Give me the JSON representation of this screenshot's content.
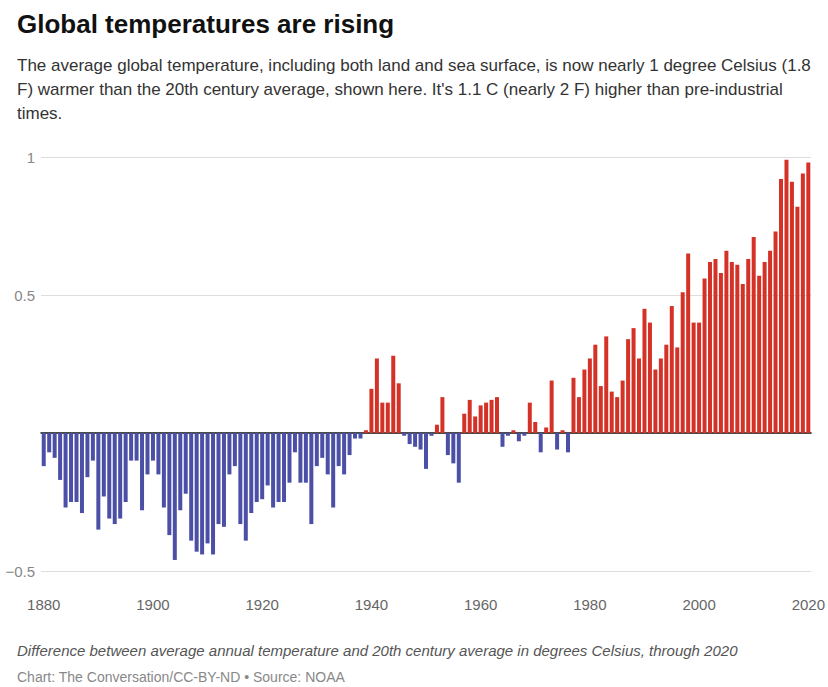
{
  "chart_data": {
    "type": "bar",
    "title": "Global temperatures are rising",
    "subtitle": "The average global temperature, including both land and sea surface, is now nearly 1 degree Celsius (1.8 F) warmer than the 20th century average, shown here. It's 1.1 C (nearly 2 F) higher than pre-industrial times.",
    "caption": "Difference between average annual temperature and 20th century average in degrees Celsius, through 2020",
    "source": "Chart: The Conversation/CC-BY-ND • Source: NOAA",
    "x": [
      1880,
      1881,
      1882,
      1883,
      1884,
      1885,
      1886,
      1887,
      1888,
      1889,
      1890,
      1891,
      1892,
      1893,
      1894,
      1895,
      1896,
      1897,
      1898,
      1899,
      1900,
      1901,
      1902,
      1903,
      1904,
      1905,
      1906,
      1907,
      1908,
      1909,
      1910,
      1911,
      1912,
      1913,
      1914,
      1915,
      1916,
      1917,
      1918,
      1919,
      1920,
      1921,
      1922,
      1923,
      1924,
      1925,
      1926,
      1927,
      1928,
      1929,
      1930,
      1931,
      1932,
      1933,
      1934,
      1935,
      1936,
      1937,
      1938,
      1939,
      1940,
      1941,
      1942,
      1943,
      1944,
      1945,
      1946,
      1947,
      1948,
      1949,
      1950,
      1951,
      1952,
      1953,
      1954,
      1955,
      1956,
      1957,
      1958,
      1959,
      1960,
      1961,
      1962,
      1963,
      1964,
      1965,
      1966,
      1967,
      1968,
      1969,
      1970,
      1971,
      1972,
      1973,
      1974,
      1975,
      1976,
      1977,
      1978,
      1979,
      1980,
      1981,
      1982,
      1983,
      1984,
      1985,
      1986,
      1987,
      1988,
      1989,
      1990,
      1991,
      1992,
      1993,
      1994,
      1995,
      1996,
      1997,
      1998,
      1999,
      2000,
      2001,
      2002,
      2003,
      2004,
      2005,
      2006,
      2007,
      2008,
      2009,
      2010,
      2011,
      2012,
      2013,
      2014,
      2015,
      2016,
      2017,
      2018,
      2019,
      2020
    ],
    "values": [
      -0.12,
      -0.07,
      -0.09,
      -0.17,
      -0.27,
      -0.25,
      -0.25,
      -0.29,
      -0.16,
      -0.1,
      -0.35,
      -0.23,
      -0.31,
      -0.33,
      -0.31,
      -0.25,
      -0.1,
      -0.1,
      -0.28,
      -0.15,
      -0.1,
      -0.15,
      -0.27,
      -0.37,
      -0.46,
      -0.28,
      -0.22,
      -0.39,
      -0.43,
      -0.44,
      -0.4,
      -0.44,
      -0.33,
      -0.34,
      -0.15,
      -0.12,
      -0.33,
      -0.39,
      -0.29,
      -0.25,
      -0.24,
      -0.19,
      -0.27,
      -0.25,
      -0.25,
      -0.18,
      -0.07,
      -0.18,
      -0.18,
      -0.33,
      -0.12,
      -0.09,
      -0.15,
      -0.27,
      -0.12,
      -0.15,
      -0.08,
      -0.02,
      -0.02,
      0.01,
      0.16,
      0.27,
      0.11,
      0.11,
      0.28,
      0.18,
      -0.01,
      -0.04,
      -0.05,
      -0.06,
      -0.13,
      -0.01,
      0.03,
      0.13,
      -0.08,
      -0.11,
      -0.18,
      0.07,
      0.12,
      0.06,
      0.1,
      0.11,
      0.12,
      0.13,
      -0.05,
      -0.01,
      0.01,
      -0.03,
      -0.01,
      0.11,
      0.04,
      -0.07,
      0.02,
      0.19,
      -0.06,
      0.01,
      -0.07,
      0.2,
      0.13,
      0.23,
      0.27,
      0.32,
      0.17,
      0.35,
      0.15,
      0.13,
      0.19,
      0.34,
      0.38,
      0.27,
      0.45,
      0.4,
      0.23,
      0.27,
      0.32,
      0.46,
      0.31,
      0.51,
      0.65,
      0.4,
      0.4,
      0.56,
      0.62,
      0.63,
      0.58,
      0.66,
      0.62,
      0.61,
      0.54,
      0.63,
      0.71,
      0.57,
      0.62,
      0.66,
      0.73,
      0.92,
      0.99,
      0.91,
      0.82,
      0.94,
      0.98
    ],
    "colors": [
      "#4b4fa6",
      "#4b4fa6",
      "#4b4fa6",
      "#4b4fa6",
      "#4b4fa6",
      "#4b4fa6",
      "#4b4fa6",
      "#4b4fa6",
      "#4b4fa6",
      "#4b4fa6",
      "#4b4fa6",
      "#4b4fa6",
      "#4b4fa6",
      "#4b4fa6",
      "#4b4fa6",
      "#4b4fa6",
      "#4b4fa6",
      "#4b4fa6",
      "#4b4fa6",
      "#4b4fa6",
      "#4b4fa6",
      "#4b4fa6",
      "#4b4fa6",
      "#4b4fa6",
      "#4b4fa6",
      "#4b4fa6",
      "#4b4fa6",
      "#4b4fa6",
      "#4b4fa6",
      "#4b4fa6",
      "#4b4fa6",
      "#4b4fa6",
      "#4b4fa6",
      "#4b4fa6",
      "#4b4fa6",
      "#4b4fa6",
      "#4b4fa6",
      "#4b4fa6",
      "#4b4fa6",
      "#4b4fa6",
      "#4b4fa6",
      "#4b4fa6",
      "#4b4fa6",
      "#4b4fa6",
      "#4b4fa6",
      "#4b4fa6",
      "#4b4fa6",
      "#4b4fa6",
      "#4b4fa6",
      "#4b4fa6",
      "#4b4fa6",
      "#4b4fa6",
      "#4b4fa6",
      "#4b4fa6",
      "#4b4fa6",
      "#4b4fa6",
      "#4b4fa6",
      "#4b4fa6",
      "#4b4fa6",
      "#d43226",
      "#d43226",
      "#d43226",
      "#d43226",
      "#d43226",
      "#d43226",
      "#d43226",
      "#4b4fa6",
      "#4b4fa6",
      "#4b4fa6",
      "#4b4fa6",
      "#4b4fa6",
      "#4b4fa6",
      "#d43226",
      "#d43226",
      "#4b4fa6",
      "#4b4fa6",
      "#4b4fa6",
      "#d43226",
      "#d43226",
      "#d43226",
      "#d43226",
      "#d43226",
      "#d43226",
      "#d43226",
      "#4b4fa6",
      "#4b4fa6",
      "#d43226",
      "#4b4fa6",
      "#4b4fa6",
      "#d43226",
      "#d43226",
      "#4b4fa6",
      "#d43226",
      "#d43226",
      "#4b4fa6",
      "#d43226",
      "#4b4fa6",
      "#d43226",
      "#d43226",
      "#d43226",
      "#d43226",
      "#d43226",
      "#d43226",
      "#d43226",
      "#d43226",
      "#d43226",
      "#d43226",
      "#d43226",
      "#d43226",
      "#d43226",
      "#d43226",
      "#d43226",
      "#d43226",
      "#d43226",
      "#d43226",
      "#d43226",
      "#d43226",
      "#d43226",
      "#d43226",
      "#d43226",
      "#d43226",
      "#d43226",
      "#d43226",
      "#d43226",
      "#d43226",
      "#d43226",
      "#d43226",
      "#d43226",
      "#d43226",
      "#d43226",
      "#d43226",
      "#d43226",
      "#d43226",
      "#d43226",
      "#d43226",
      "#d43226",
      "#d43226",
      "#d43226",
      "#d43226",
      "#d43226",
      "#d43226"
    ],
    "xlim": [
      1879.5,
      2020.5
    ],
    "xticks": [
      1880,
      1900,
      1920,
      1940,
      1960,
      1980,
      2000,
      2020
    ],
    "ylim": [
      -0.5,
      1
    ],
    "yticks": [
      {
        "value": -0.5,
        "label": "−0.5"
      },
      0.5,
      1
    ],
    "grid": true
  }
}
